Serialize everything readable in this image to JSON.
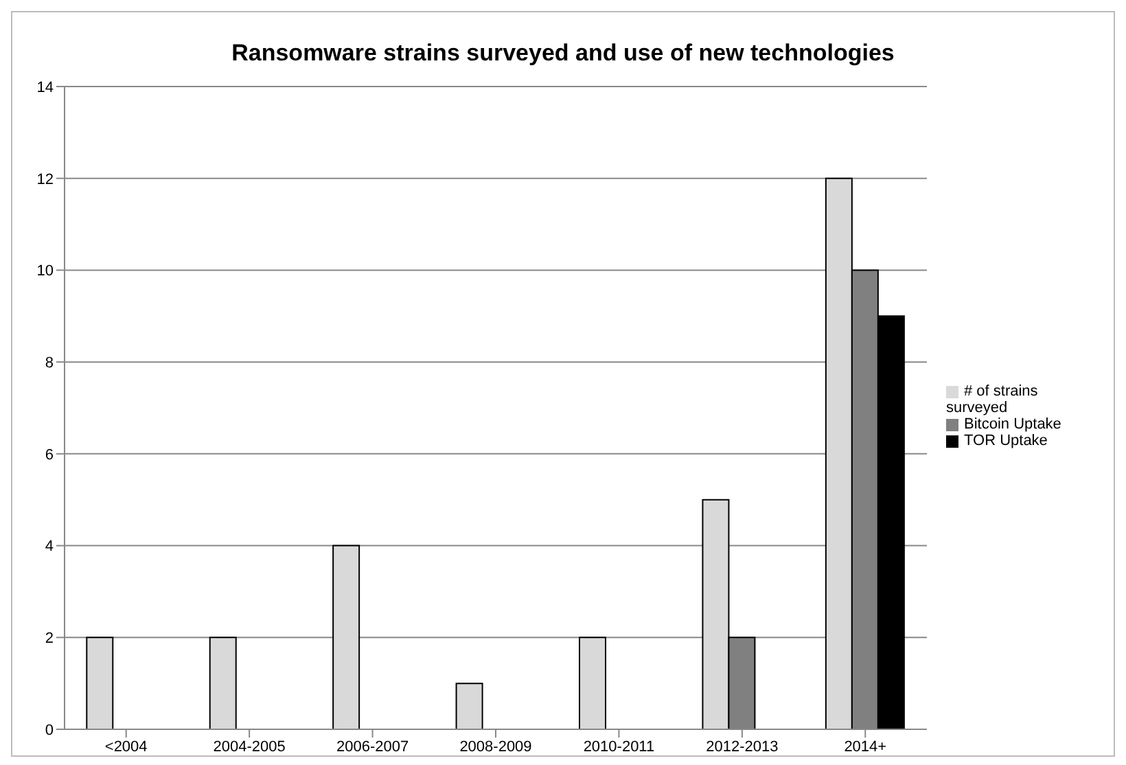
{
  "chart_data": {
    "type": "bar",
    "title": "Ransomware strains surveyed and use of new technologies",
    "categories": [
      "<2004",
      "2004-2005",
      "2006-2007",
      "2008-2009",
      "2010-2011",
      "2012-2013",
      "2014+"
    ],
    "series": [
      {
        "name": "# of strains surveyed",
        "color": "#d9d9d9",
        "values": [
          2,
          2,
          4,
          1,
          2,
          5,
          12
        ]
      },
      {
        "name": "Bitcoin Uptake",
        "color": "#808080",
        "values": [
          null,
          null,
          null,
          null,
          null,
          2,
          10
        ]
      },
      {
        "name": "TOR Uptake",
        "color": "#000000",
        "values": [
          null,
          null,
          null,
          null,
          null,
          null,
          9
        ]
      }
    ],
    "ylim": [
      0,
      14
    ],
    "yticks": [
      0,
      2,
      4,
      6,
      8,
      10,
      12,
      14
    ],
    "grid": "y",
    "legend": "right"
  }
}
